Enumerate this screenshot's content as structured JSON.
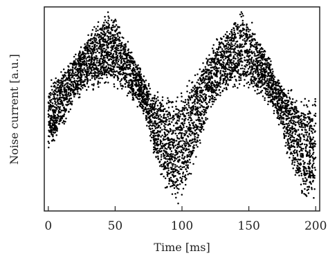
{
  "chart_data": {
    "type": "scatter",
    "title": "",
    "xlabel": "Time [ms]",
    "ylabel": "Noise current [a.u.]",
    "xlim": [
      -3,
      203
    ],
    "ylim": [
      0,
      1
    ],
    "xticks": [
      0,
      50,
      100,
      150,
      200
    ],
    "xtick_labels": [
      "0",
      "50",
      "100",
      "150",
      "200"
    ],
    "yticks_shown": false,
    "grid": false,
    "legend": "none",
    "marker_color": "#000000",
    "series": [
      {
        "x": [
          0,
          10,
          20,
          30,
          40,
          45,
          50,
          60,
          70,
          80,
          90,
          95,
          100,
          110,
          120,
          130,
          140,
          145,
          150,
          160,
          170,
          180,
          190,
          195,
          200
        ],
        "y_upper": [
          0.62,
          0.7,
          0.78,
          0.88,
          0.97,
          1.0,
          0.97,
          0.84,
          0.68,
          0.6,
          0.55,
          0.55,
          0.58,
          0.68,
          0.8,
          0.9,
          0.98,
          1.0,
          0.97,
          0.85,
          0.68,
          0.6,
          0.55,
          0.54,
          0.56
        ],
        "y_lower": [
          0.28,
          0.4,
          0.55,
          0.6,
          0.62,
          0.62,
          0.61,
          0.57,
          0.5,
          0.25,
          0.05,
          0.0,
          0.04,
          0.24,
          0.48,
          0.58,
          0.61,
          0.61,
          0.61,
          0.57,
          0.48,
          0.24,
          0.06,
          0.02,
          0.06
        ]
      }
    ]
  }
}
